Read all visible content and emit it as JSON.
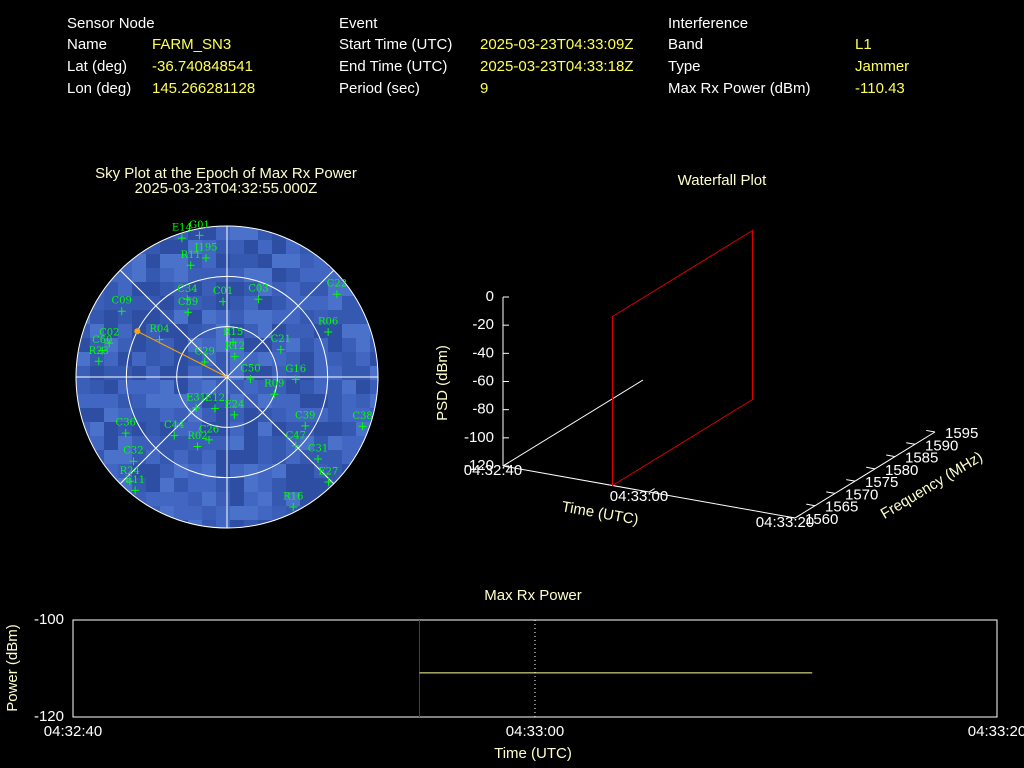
{
  "info": {
    "sections": [
      {
        "title": "Sensor Node",
        "rows": [
          [
            "Name",
            "FARM_SN3"
          ],
          [
            "Lat (deg)",
            "-36.740848541"
          ],
          [
            "Lon (deg)",
            "145.266281128"
          ]
        ]
      },
      {
        "title": "Event",
        "rows": [
          [
            "Start Time (UTC)",
            "2025-03-23T04:33:09Z"
          ],
          [
            "End Time (UTC)",
            "2025-03-23T04:33:18Z"
          ],
          [
            "Period (sec)",
            "9"
          ]
        ]
      },
      {
        "title": "Interference",
        "rows": [
          [
            "Band",
            "L1"
          ],
          [
            "Type",
            "Jammer"
          ],
          [
            "Max Rx Power (dBm)",
            "-110.43"
          ]
        ]
      }
    ]
  },
  "chart_data": [
    {
      "type": "sky",
      "title": "Sky Plot at the Epoch of Max Rx Power",
      "subtitle": "2025-03-23T04:32:55.000Z",
      "color": "#00ff00",
      "elgrid": [
        0,
        30,
        60
      ],
      "azgrid": [
        0,
        45,
        90,
        135,
        180,
        225,
        270,
        315
      ],
      "interference": {
        "az": 297,
        "el": 30,
        "color": "#ffa500"
      },
      "satellites": [
        {
          "name": "E14",
          "az": 342,
          "el": 3
        },
        {
          "name": "G01",
          "az": 349,
          "el": 4
        },
        {
          "name": "J195",
          "az": 350,
          "el": 18
        },
        {
          "name": "R11",
          "az": 342,
          "el": 20
        },
        {
          "name": "C34",
          "az": 333,
          "el": 38
        },
        {
          "name": "C59",
          "az": 329,
          "el": 45
        },
        {
          "name": "C01",
          "az": 357,
          "el": 45
        },
        {
          "name": "C03",
          "az": 22,
          "el": 40
        },
        {
          "name": "C22",
          "az": 53,
          "el": 8
        },
        {
          "name": "R06",
          "az": 66,
          "el": 24
        },
        {
          "name": "C21",
          "az": 63,
          "el": 54
        },
        {
          "name": "G16",
          "az": 92,
          "el": 49
        },
        {
          "name": "R09",
          "az": 110,
          "el": 60
        },
        {
          "name": "C38",
          "az": 110,
          "el": 4
        },
        {
          "name": "C39",
          "az": 122,
          "el": 35
        },
        {
          "name": "C47",
          "az": 135,
          "el": 32
        },
        {
          "name": "C31",
          "az": 132,
          "el": 17
        },
        {
          "name": "E27",
          "az": 136,
          "el": 3
        },
        {
          "name": "R16",
          "az": 153,
          "el": 3
        },
        {
          "name": "C36",
          "az": 241,
          "el": 21
        },
        {
          "name": "C32",
          "az": 228,
          "el": 15
        },
        {
          "name": "R24",
          "az": 223,
          "el": 5
        },
        {
          "name": "E11",
          "az": 219,
          "el": 3
        },
        {
          "name": "R23",
          "az": 277,
          "el": 13
        },
        {
          "name": "C09",
          "az": 302,
          "el": 16
        },
        {
          "name": "C60",
          "az": 282,
          "el": 14
        },
        {
          "name": "C02",
          "az": 286,
          "el": 17
        },
        {
          "name": "R04",
          "az": 299,
          "el": 44
        },
        {
          "name": "C44",
          "az": 222,
          "el": 43
        },
        {
          "name": "R02",
          "az": 203,
          "el": 45
        },
        {
          "name": "C26",
          "az": 196,
          "el": 51
        },
        {
          "name": "E24",
          "az": 169,
          "el": 67
        },
        {
          "name": "C50",
          "az": 95,
          "el": 76
        },
        {
          "name": "R12",
          "az": 21,
          "el": 77
        },
        {
          "name": "C29",
          "az": 304,
          "el": 74
        },
        {
          "name": "E31",
          "az": 225,
          "el": 64
        },
        {
          "name": "E12",
          "az": 201,
          "el": 70
        },
        {
          "name": "R15",
          "az": 10,
          "el": 69
        }
      ]
    },
    {
      "type": "waterfall",
      "title": "Waterfall Plot",
      "xlabel": "Time (UTC)",
      "ylabel": "Frequency (MHz)",
      "zlabel": "PSD (dBm)",
      "xlim": [
        "04:32:40",
        "04:33:20"
      ],
      "xticks": [
        "04:32:40",
        "04:33:00",
        "04:33:20"
      ],
      "ylim": [
        1560,
        1595
      ],
      "yticks": [
        1560,
        1565,
        1570,
        1575,
        1580,
        1585,
        1590,
        1595
      ],
      "zlim": [
        -120,
        0
      ],
      "zticks": [
        0,
        -20,
        -40,
        -60,
        -80,
        -100,
        -120
      ],
      "epoch_marker": "04:32:55",
      "marker_color": "#dd0000"
    },
    {
      "type": "line",
      "title": "Max Rx Power",
      "xlabel": "Time (UTC)",
      "ylabel": "Power (dBm)",
      "xlim": [
        "04:32:40",
        "04:33:20"
      ],
      "xticks": [
        "04:32:40",
        "04:33:00",
        "04:33:20"
      ],
      "ylim": [
        -120,
        -100
      ],
      "yticks": [
        -100,
        -120
      ],
      "grid": true,
      "epoch_marker": "04:32:55",
      "marker_color": "#dd0000",
      "series": [
        {
          "color": "#ffff99",
          "x": [
            "04:32:55",
            "04:33:12"
          ],
          "values": [
            -110.9,
            -110.9
          ]
        }
      ]
    }
  ]
}
